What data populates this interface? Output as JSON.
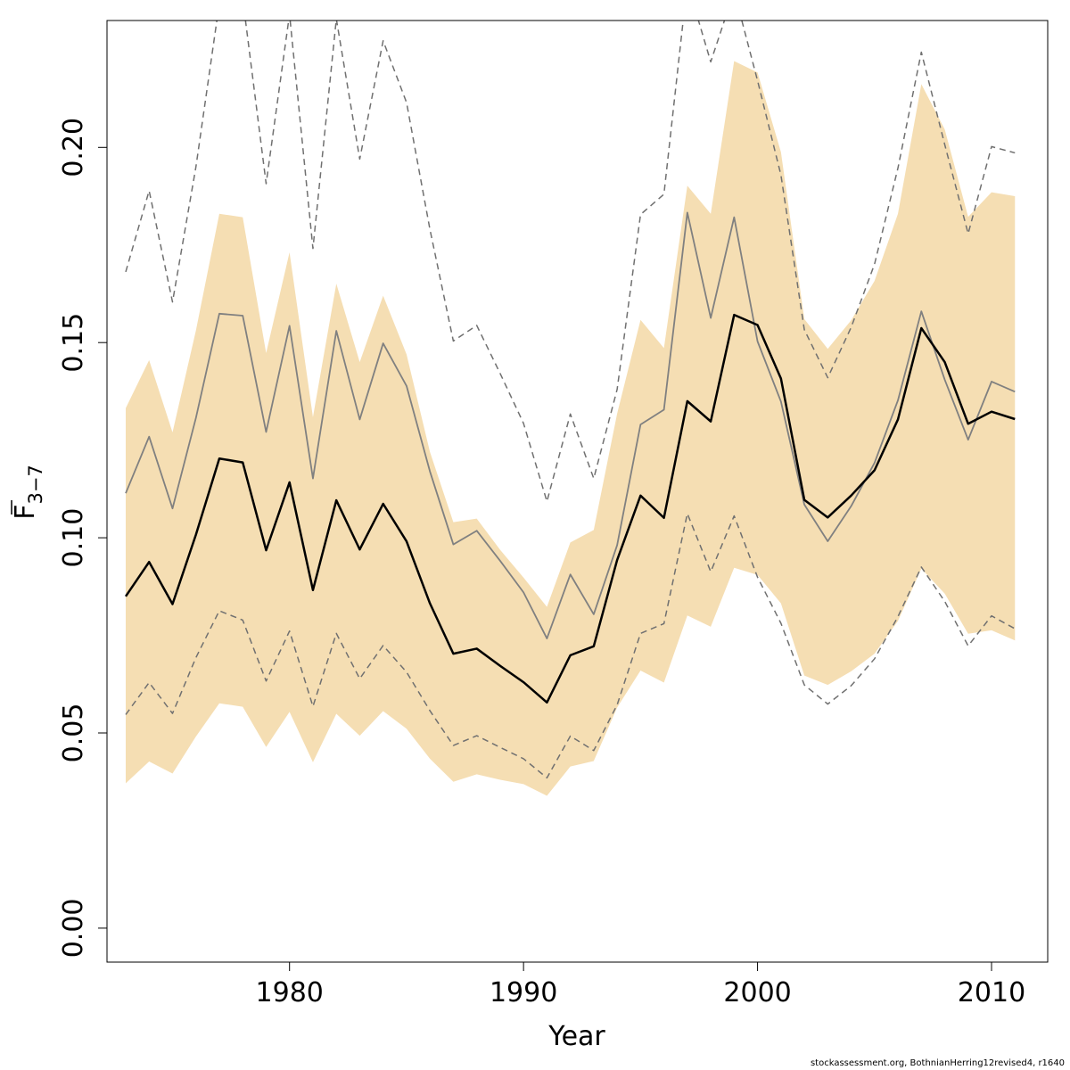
{
  "chart_data": {
    "type": "line",
    "xlabel": "Year",
    "ylabel": {
      "main": "F",
      "subscript": "3−7",
      "overbar": true
    },
    "xlim": [
      1972.2,
      2012.4
    ],
    "ylim": [
      -0.0087,
      0.2325
    ],
    "xticks": [
      1980,
      1990,
      2000,
      2010
    ],
    "yticks": [
      0.0,
      0.05,
      0.1,
      0.15,
      0.2
    ],
    "ytick_labels": [
      "0.00",
      "0.05",
      "0.10",
      "0.15",
      "0.20"
    ],
    "grid": false,
    "legend": "none",
    "x": [
      1973,
      1974,
      1975,
      1976,
      1977,
      1978,
      1979,
      1980,
      1981,
      1982,
      1983,
      1984,
      1985,
      1986,
      1987,
      1988,
      1989,
      1990,
      1991,
      1992,
      1993,
      1994,
      1995,
      1996,
      1997,
      1998,
      1999,
      2000,
      2001,
      2002,
      2003,
      2004,
      2005,
      2006,
      2007,
      2008,
      2009,
      2010,
      2011
    ],
    "band": {
      "color": "#f5deb3",
      "lower": [
        0.0371,
        0.0427,
        0.0396,
        0.0491,
        0.0576,
        0.0567,
        0.0464,
        0.0554,
        0.0425,
        0.0549,
        0.0493,
        0.0556,
        0.0511,
        0.0434,
        0.0375,
        0.0394,
        0.038,
        0.0369,
        0.0339,
        0.0414,
        0.0428,
        0.0565,
        0.066,
        0.0629,
        0.0801,
        0.0772,
        0.0923,
        0.0905,
        0.0832,
        0.0647,
        0.0623,
        0.0658,
        0.0703,
        0.0787,
        0.0921,
        0.0857,
        0.0754,
        0.0763,
        0.0737
      ],
      "upper": [
        0.1332,
        0.1455,
        0.127,
        0.1531,
        0.183,
        0.1821,
        0.1473,
        0.1731,
        0.1309,
        0.1651,
        0.145,
        0.162,
        0.147,
        0.122,
        0.104,
        0.1049,
        0.0969,
        0.0898,
        0.0823,
        0.0988,
        0.102,
        0.1318,
        0.1558,
        0.1486,
        0.1902,
        0.183,
        0.2221,
        0.2192,
        0.1988,
        0.156,
        0.1484,
        0.1557,
        0.1658,
        0.183,
        0.2162,
        0.2046,
        0.1822,
        0.1885,
        0.1875
      ]
    },
    "series": [
      {
        "color": "#000000",
        "style": "solid",
        "width": 2.5,
        "values": [
          0.085,
          0.0938,
          0.083,
          0.1008,
          0.1203,
          0.1193,
          0.0968,
          0.1142,
          0.0866,
          0.1096,
          0.097,
          0.1087,
          0.0991,
          0.0832,
          0.0703,
          0.0716,
          0.0672,
          0.063,
          0.0578,
          0.0699,
          0.0722,
          0.0943,
          0.1108,
          0.1051,
          0.135,
          0.1298,
          0.1571,
          0.1545,
          0.1408,
          0.1097,
          0.1052,
          0.1108,
          0.1173,
          0.1303,
          0.1537,
          0.145,
          0.1292,
          0.1323,
          0.1304
        ]
      },
      {
        "color": "#808080",
        "style": "solid",
        "width": 1.8,
        "values": [
          0.1114,
          0.1259,
          0.1075,
          0.1307,
          0.1574,
          0.1569,
          0.1271,
          0.1543,
          0.1152,
          0.153,
          0.1303,
          0.1498,
          0.1389,
          0.117,
          0.0983,
          0.1018,
          0.0941,
          0.086,
          0.0742,
          0.0906,
          0.0804,
          0.0981,
          0.129,
          0.1328,
          0.1833,
          0.1563,
          0.1821,
          0.1503,
          0.1349,
          0.1085,
          0.0991,
          0.1081,
          0.1192,
          0.1352,
          0.158,
          0.1405,
          0.1251,
          0.14,
          0.1374
        ]
      },
      {
        "color": "#707070",
        "style": "dashed",
        "width": 1.5,
        "values": [
          0.1681,
          0.1889,
          0.1604,
          0.195,
          0.2369,
          0.2381,
          0.1907,
          0.2341,
          0.1741,
          0.2329,
          0.197,
          0.2273,
          0.2115,
          0.179,
          0.1504,
          0.1544,
          0.1421,
          0.1293,
          0.1093,
          0.1317,
          0.1152,
          0.138,
          0.1828,
          0.188,
          0.2421,
          0.2219,
          0.24,
          0.2171,
          0.1929,
          0.1533,
          0.141,
          0.1539,
          0.1701,
          0.1947,
          0.2244,
          0.2007,
          0.1779,
          0.2002,
          0.1986
        ]
      },
      {
        "color": "#707070",
        "style": "dashed",
        "width": 1.5,
        "values": [
          0.0547,
          0.0629,
          0.055,
          0.0693,
          0.0813,
          0.0789,
          0.0633,
          0.0761,
          0.0568,
          0.0755,
          0.0639,
          0.0724,
          0.0656,
          0.0557,
          0.0468,
          0.0493,
          0.0463,
          0.0434,
          0.0385,
          0.0492,
          0.0455,
          0.0572,
          0.0755,
          0.078,
          0.1062,
          0.0913,
          0.1056,
          0.0899,
          0.0781,
          0.0623,
          0.0574,
          0.0621,
          0.069,
          0.0798,
          0.0925,
          0.0837,
          0.0723,
          0.08,
          0.0767
        ]
      }
    ]
  },
  "footer": "stockassessment.org, BothnianHerring12revised4, r1640"
}
